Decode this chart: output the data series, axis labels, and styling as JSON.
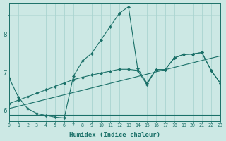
{
  "xlabel": "Humidex (Indice chaleur)",
  "background_color": "#cce8e4",
  "grid_color": "#aad4d0",
  "line_color": "#1a7068",
  "xlim": [
    0,
    23
  ],
  "ylim": [
    5.72,
    8.82
  ],
  "yticks": [
    6,
    7,
    8
  ],
  "xticks": [
    0,
    1,
    2,
    3,
    4,
    5,
    6,
    7,
    8,
    9,
    10,
    11,
    12,
    13,
    14,
    15,
    16,
    17,
    18,
    19,
    20,
    21,
    22,
    23
  ],
  "lines": [
    {
      "x": [
        0,
        1,
        2,
        3,
        4,
        5,
        6,
        7,
        8,
        9,
        10,
        11,
        12,
        13,
        14,
        15,
        16,
        17,
        18,
        19,
        20,
        21,
        22,
        23
      ],
      "y": [
        6.85,
        6.35,
        6.05,
        5.92,
        5.87,
        5.82,
        5.8,
        6.9,
        7.3,
        7.5,
        7.85,
        8.2,
        8.55,
        8.72,
        7.1,
        6.72,
        7.07,
        7.07,
        7.38,
        7.47,
        7.48,
        7.52,
        7.05,
        6.72
      ],
      "marker": true
    },
    {
      "x": [
        0,
        1,
        2,
        3,
        4,
        5,
        6,
        7,
        8,
        9,
        10,
        11,
        12,
        13,
        14,
        15,
        16,
        17,
        18,
        19,
        20,
        21,
        22,
        23
      ],
      "y": [
        5.88,
        5.88,
        5.88,
        5.88,
        5.88,
        5.88,
        5.88,
        5.88,
        5.88,
        5.88,
        5.88,
        5.88,
        5.88,
        5.88,
        5.88,
        5.88,
        5.88,
        5.88,
        5.88,
        5.88,
        5.88,
        5.88,
        5.88,
        5.88
      ],
      "marker": false
    },
    {
      "x": [
        0,
        1,
        2,
        3,
        4,
        5,
        6,
        7,
        8,
        9,
        10,
        11,
        12,
        13,
        14,
        15,
        16,
        17,
        18,
        19,
        20,
        21,
        22,
        23
      ],
      "y": [
        6.05,
        6.11,
        6.17,
        6.23,
        6.29,
        6.35,
        6.41,
        6.47,
        6.53,
        6.59,
        6.65,
        6.71,
        6.77,
        6.83,
        6.89,
        6.95,
        7.01,
        7.07,
        7.13,
        7.19,
        7.25,
        7.31,
        7.37,
        7.43
      ],
      "marker": false
    },
    {
      "x": [
        0,
        1,
        2,
        3,
        4,
        5,
        6,
        7,
        8,
        9,
        10,
        11,
        12,
        13,
        14,
        15,
        16,
        17,
        18,
        19,
        20,
        21,
        22,
        23
      ],
      "y": [
        6.18,
        6.27,
        6.36,
        6.45,
        6.54,
        6.63,
        6.72,
        6.81,
        6.87,
        6.93,
        6.98,
        7.03,
        7.08,
        7.08,
        7.05,
        6.68,
        7.07,
        7.07,
        7.38,
        7.47,
        7.48,
        7.52,
        7.05,
        6.72
      ],
      "marker": true
    }
  ]
}
